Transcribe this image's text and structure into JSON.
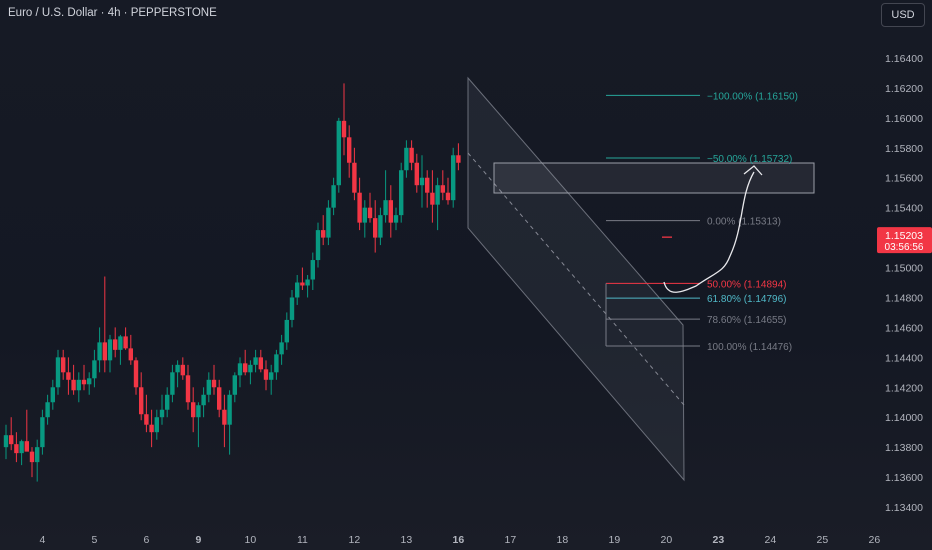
{
  "header": {
    "symbol_title": "Euro / U.S. Dollar · 4h · PEPPERSTONE",
    "currency_label": "USD"
  },
  "chart_data": {
    "type": "candlestick",
    "title": "Euro / U.S. Dollar · 4h · PEPPERSTONE",
    "y_axis_position": "right",
    "ylim": [
      1.133,
      1.1648
    ],
    "y_ticks": [
      1.164,
      1.162,
      1.16,
      1.158,
      1.156,
      1.154,
      1.152,
      1.15,
      1.148,
      1.146,
      1.144,
      1.142,
      1.14,
      1.138,
      1.136,
      1.134
    ],
    "x_ticks": [
      {
        "label": "4",
        "i": 7,
        "bold": false
      },
      {
        "label": "5",
        "i": 17,
        "bold": false
      },
      {
        "label": "6",
        "i": 27,
        "bold": false
      },
      {
        "label": "9",
        "i": 37,
        "bold": true
      },
      {
        "label": "10",
        "i": 47,
        "bold": false
      },
      {
        "label": "11",
        "i": 57,
        "bold": false
      },
      {
        "label": "12",
        "i": 67,
        "bold": false
      },
      {
        "label": "13",
        "i": 77,
        "bold": false
      },
      {
        "label": "16",
        "i": 87,
        "bold": true
      },
      {
        "label": "17",
        "i": 97,
        "bold": false
      },
      {
        "label": "18",
        "i": 107,
        "bold": false
      },
      {
        "label": "19",
        "i": 117,
        "bold": false
      },
      {
        "label": "20",
        "i": 127,
        "bold": false
      },
      {
        "label": "23",
        "i": 137,
        "bold": true
      },
      {
        "label": "24",
        "i": 147,
        "bold": false
      },
      {
        "label": "25",
        "i": 157,
        "bold": false
      },
      {
        "label": "26",
        "i": 167,
        "bold": false
      }
    ],
    "candles": [
      [
        1.138,
        1.1395,
        1.1372,
        1.1388
      ],
      [
        1.1388,
        1.14,
        1.1378,
        1.1382
      ],
      [
        1.1382,
        1.139,
        1.137,
        1.1376
      ],
      [
        1.1376,
        1.1385,
        1.1368,
        1.1384
      ],
      [
        1.1384,
        1.1405,
        1.138,
        1.1377
      ],
      [
        1.1377,
        1.138,
        1.136,
        1.137
      ],
      [
        1.137,
        1.1385,
        1.1357,
        1.138
      ],
      [
        1.138,
        1.1405,
        1.1375,
        1.14
      ],
      [
        1.14,
        1.1415,
        1.1395,
        1.141
      ],
      [
        1.141,
        1.1425,
        1.1405,
        1.142
      ],
      [
        1.142,
        1.1445,
        1.1415,
        1.144
      ],
      [
        1.144,
        1.1445,
        1.1425,
        1.143
      ],
      [
        1.143,
        1.144,
        1.1415,
        1.1425
      ],
      [
        1.1425,
        1.1435,
        1.1415,
        1.1418
      ],
      [
        1.1418,
        1.143,
        1.141,
        1.1425
      ],
      [
        1.1425,
        1.1435,
        1.1418,
        1.1422
      ],
      [
        1.1422,
        1.143,
        1.1415,
        1.1426
      ],
      [
        1.1426,
        1.1445,
        1.142,
        1.1438
      ],
      [
        1.1438,
        1.146,
        1.143,
        1.145
      ],
      [
        1.145,
        1.1494,
        1.143,
        1.1438
      ],
      [
        1.1438,
        1.1455,
        1.143,
        1.1452
      ],
      [
        1.1452,
        1.146,
        1.144,
        1.1445
      ],
      [
        1.1445,
        1.1455,
        1.1435,
        1.1454
      ],
      [
        1.1454,
        1.146,
        1.1445,
        1.1446
      ],
      [
        1.1446,
        1.1455,
        1.1435,
        1.1438
      ],
      [
        1.1438,
        1.144,
        1.1415,
        1.142
      ],
      [
        1.142,
        1.143,
        1.1398,
        1.1402
      ],
      [
        1.1402,
        1.1415,
        1.139,
        1.1395
      ],
      [
        1.1395,
        1.1405,
        1.138,
        1.139
      ],
      [
        1.139,
        1.1405,
        1.1385,
        1.14
      ],
      [
        1.14,
        1.1415,
        1.1395,
        1.1405
      ],
      [
        1.1405,
        1.142,
        1.14,
        1.1415
      ],
      [
        1.1415,
        1.1435,
        1.141,
        1.143
      ],
      [
        1.143,
        1.1438,
        1.142,
        1.1435
      ],
      [
        1.1435,
        1.144,
        1.1425,
        1.1428
      ],
      [
        1.1428,
        1.1435,
        1.1405,
        1.141
      ],
      [
        1.141,
        1.142,
        1.139,
        1.14
      ],
      [
        1.14,
        1.141,
        1.138,
        1.1408
      ],
      [
        1.1408,
        1.142,
        1.14,
        1.1415
      ],
      [
        1.1415,
        1.143,
        1.141,
        1.1425
      ],
      [
        1.1425,
        1.1435,
        1.1415,
        1.142
      ],
      [
        1.142,
        1.1425,
        1.14,
        1.1405
      ],
      [
        1.1405,
        1.1415,
        1.138,
        1.1395
      ],
      [
        1.1395,
        1.1418,
        1.1375,
        1.1415
      ],
      [
        1.1415,
        1.143,
        1.141,
        1.1428
      ],
      [
        1.1428,
        1.144,
        1.142,
        1.1436
      ],
      [
        1.1436,
        1.1445,
        1.1428,
        1.143
      ],
      [
        1.143,
        1.1438,
        1.1422,
        1.1435
      ],
      [
        1.1435,
        1.1445,
        1.143,
        1.144
      ],
      [
        1.144,
        1.1445,
        1.143,
        1.1432
      ],
      [
        1.1432,
        1.1438,
        1.1418,
        1.1425
      ],
      [
        1.1425,
        1.1435,
        1.1415,
        1.143
      ],
      [
        1.143,
        1.1445,
        1.1425,
        1.1442
      ],
      [
        1.1442,
        1.1455,
        1.1435,
        1.145
      ],
      [
        1.145,
        1.147,
        1.1445,
        1.1465
      ],
      [
        1.1465,
        1.1485,
        1.146,
        1.148
      ],
      [
        1.148,
        1.1495,
        1.1475,
        1.149
      ],
      [
        1.149,
        1.15,
        1.1485,
        1.1488
      ],
      [
        1.1488,
        1.1495,
        1.148,
        1.1492
      ],
      [
        1.1492,
        1.151,
        1.1485,
        1.1505
      ],
      [
        1.1505,
        1.153,
        1.15,
        1.1525
      ],
      [
        1.1525,
        1.1535,
        1.1515,
        1.152
      ],
      [
        1.152,
        1.1545,
        1.1515,
        1.154
      ],
      [
        1.154,
        1.156,
        1.1535,
        1.1555
      ],
      [
        1.1555,
        1.16,
        1.155,
        1.1598
      ],
      [
        1.1598,
        1.1623,
        1.1575,
        1.1587
      ],
      [
        1.1587,
        1.1595,
        1.156,
        1.157
      ],
      [
        1.157,
        1.158,
        1.1545,
        1.155
      ],
      [
        1.155,
        1.156,
        1.1525,
        1.153
      ],
      [
        1.153,
        1.1545,
        1.152,
        1.154
      ],
      [
        1.154,
        1.155,
        1.153,
        1.1533
      ],
      [
        1.1533,
        1.1545,
        1.151,
        1.152
      ],
      [
        1.152,
        1.154,
        1.1515,
        1.1535
      ],
      [
        1.1535,
        1.1565,
        1.153,
        1.1545
      ],
      [
        1.1545,
        1.1555,
        1.152,
        1.153
      ],
      [
        1.153,
        1.154,
        1.1525,
        1.1535
      ],
      [
        1.1535,
        1.157,
        1.153,
        1.1565
      ],
      [
        1.1565,
        1.1585,
        1.156,
        1.158
      ],
      [
        1.158,
        1.1585,
        1.1565,
        1.157
      ],
      [
        1.157,
        1.1576,
        1.155,
        1.1555
      ],
      [
        1.1555,
        1.1575,
        1.154,
        1.156
      ],
      [
        1.156,
        1.1565,
        1.154,
        1.155
      ],
      [
        1.155,
        1.1565,
        1.153,
        1.1542
      ],
      [
        1.1542,
        1.156,
        1.1525,
        1.1555
      ],
      [
        1.1555,
        1.1565,
        1.1545,
        1.155
      ],
      [
        1.155,
        1.156,
        1.1542,
        1.1545
      ],
      [
        1.1545,
        1.158,
        1.154,
        1.1575
      ],
      [
        1.1575,
        1.1583,
        1.1565,
        1.157
      ]
    ],
    "fibonacci": [
      {
        "label": "−100.00% (1.16150)",
        "price": 1.1615,
        "color": "#26a69a"
      },
      {
        "label": "−50.00% (1.15732)",
        "price": 1.15732,
        "color": "#26a69a"
      },
      {
        "label": "0.00% (1.15313)",
        "price": 1.15313,
        "color": "#787b86"
      },
      {
        "label": "50.00% (1.14894)",
        "price": 1.14894,
        "color": "#f23645"
      },
      {
        "label": "61.80% (1.14796)",
        "price": 1.14796,
        "color": "#50b8c7"
      },
      {
        "label": "78.60% (1.14655)",
        "price": 1.14655,
        "color": "#787b86"
      },
      {
        "label": "100.00% (1.14476)",
        "price": 1.14476,
        "color": "#787b86"
      }
    ],
    "current_price": "1.15203",
    "countdown": "03:56:56",
    "colors": {
      "bull": "#089981",
      "bear": "#f23645",
      "background": "#131722",
      "axis_text": "#b2b5be",
      "price_tag": "#f23645"
    }
  }
}
